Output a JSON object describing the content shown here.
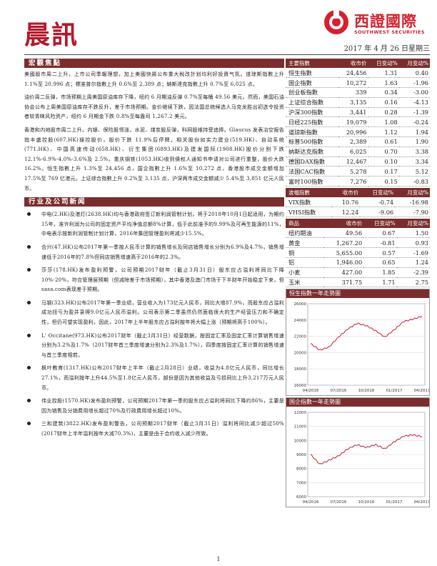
{
  "header": {
    "title": "晨訊",
    "logo_cn": "西證國際",
    "logo_en": "SOUTHWEST SECURITIES",
    "date": "2017 年 4 月 26 日星期三"
  },
  "macro": {
    "heading": "宏觀焦點",
    "paragraphs": [
      "美國股市周二上升，上市公司季報理想，加上美國快將公布重大稅改計划均利好投資气氛。道琼斯指數上升 1.1%至 20,996 点；標准普尔指數上升 0.6%至 2,389 点；納斯達克指數上升 0.7%至 6,025 点。",
      "油价周二反弹，市场预期上周美国原油库存下降，纽约 6 月期油反弹 0.7%至每桶 49.56 美元。然而，美国石油协会公布上周美国原油库存不跌反升，差于市场预期。金价继续下跌，因法国总统候选人马克龙胜出初选令投资者较青睐风险资产，纽约 6 月期金下跌 0.8%至每盎司 1,267.2 美元。",
      "香港和内地股市周二上升。内银、保险股领涨，水泥、煤炭股反弹，科网股维持受追捧。Glaucus 发表冶空报告指丰盛控股(607.HK)操控股价，股价下跌 11.9%后停牌，相关股份如实力建业(519.HK)、自动系统(771.HK)、中国高速传动(658.HK)、衍生集团(6893.HK)及建发国际(1908.HK)股价分别下跌 12.1%-6.9%-4.0%-3.6%及 2.5%。重庆钢铁(1053.HK)收到債权人通知书申请对公司进行重整，股价大跌 16.2%。恒生指數上升 1.3%至 24,456 点，国企指數上升 1.6%至 10,272 点，香港股市成交金額增加 17.5%至 769 亿港元。上证综合指數上升 0.2%至 3,135 点，沪深两市成交金額减少 5.4%至 3,851 亿元人民币。"
    ]
  },
  "news": {
    "heading": "行业及公司新闻",
    "items": [
      "中电(2.HK)及港灯(2638.HK)均与香港政府签订新利润管制计划，将于2018年10月1日起适用，为期约15年，准许利润为公司的固定资产平均净值总额8%计算，低于此前准予的9.99%及可再生能源的11%，中电表示按新利润管制计划计算，2016年集团管理盈利将减少15.5%。",
      "合兴(47.HK)公布2017年第一季按人民币计算的销售增长及同店销售增长分别为6.9%及4.7%，销售增速低于2016年的7.8%但同店销售增速高于2016年的2.3%。",
      "莎莎(178.HK)发布盈利预警，公司预期2017财年（截止3月31日）股东应占溢利将同比下降10%-20%，符合管理层预期（但减除差于市场预期），其中香港及澳门市场于下半财年开始稳定下来，但sasa.com表现差于预期。",
      "马钢(323.HK)公布2017年第一季业绩，营业收入为173亿元人民币，同比大增87.9%，而股东应占溢利成功扭亏为盈并录得9.0亿元人民币溢利。公司表示第二季虽然仍然面临很大的生产经营压力和不确定性，但仍可望实现盈利，因此，2017年上半年股东应占溢利按年将大幅上涨（预期将高于100%）。",
      "L' Occitane(973.HK)公布2017财年（截止3月31日）经营数据，按固定汇率及固定汇率计算销售增速分别为3.2%及1.7%（2017财年首三季度增速分别为2.3%及1.7%），四季度按固定汇率计算的销售增速与首三季度相若。",
      "枫叶教育(1317.HK)公布2017财年上半年（截止2月28日）业绩，收益为4.8亿元人民币，同比增长27.1%，而溢利按年上升44.5%至1.8亿元人民币，部份是因为其他收益及亏损同比上升3,217万元人民币。",
      "伟业控股(1570.HK)发布盈利预警，公司预期2017年第一季的股东应占溢利将同比下降约86%，主要是因为销售及分销费用增长超过70%及行政费用增长超过10%。",
      "三和建筑(3822.HK)发布盈利警告，公司预期2017财年（截止3月31日）溢利将同比减少超过50%(2017财年上半年溢利按年大减70.3%)，主要是由于合约收入减少所致。"
    ]
  },
  "indices": {
    "headers": [
      "主要指數",
      "收市价",
      "日变动%",
      "月变动%"
    ],
    "rows": [
      [
        "恒生指數",
        "24,456",
        "1.31",
        "0.40"
      ],
      [
        "国企指數",
        "10,272",
        "1.63",
        "-1.96"
      ],
      [
        "创业板指數",
        "339",
        "0.34",
        "-3.00"
      ],
      [
        "上证综合指數",
        "3,135",
        "0.16",
        "-4.13"
      ],
      [
        "沪深300指數",
        "3,441",
        "0.28",
        "-1.39"
      ],
      [
        "日经225指數",
        "19,079",
        "1.08",
        "-0.24"
      ],
      [
        "道琼斯指數",
        "20,996",
        "1.12",
        "1.94"
      ],
      [
        "标普500指數",
        "2,389",
        "0.61",
        "1.90"
      ],
      [
        "纳斯达克指數",
        "6,025",
        "0.70",
        "3.38"
      ],
      [
        "德国DAX指數",
        "12,467",
        "0.10",
        "3.34"
      ],
      [
        "法国CAC指數",
        "5,278",
        "0.17",
        "5.12"
      ],
      [
        "富时100指數",
        "7,276",
        "0.15",
        "-0.83"
      ]
    ]
  },
  "volatility": {
    "headers": [
      "波幅指數",
      "收市价",
      "日变动%",
      "月变动%"
    ],
    "rows": [
      [
        "VIX指數",
        "10.76",
        "-0.74",
        "-16.98"
      ],
      [
        "VHSI指數",
        "12.24",
        "-9.06",
        "-7.90"
      ]
    ]
  },
  "commodities": {
    "headers": [
      "商品",
      "收市价",
      "日变动%",
      "月变动%"
    ],
    "rows": [
      [
        "纽约期油",
        "49.56",
        "0.67",
        "1.50"
      ],
      [
        "黄金",
        "1,267.20",
        "-0.81",
        "0.93"
      ],
      [
        "铜",
        "5,655.00",
        "0.57",
        "-1.69"
      ],
      [
        "铝",
        "1,946.00",
        "0.65",
        "1.24"
      ],
      [
        "小麦",
        "427.00",
        "1.85",
        "-2.39"
      ],
      [
        "玉米",
        "371.75",
        "1.71",
        "2.75"
      ]
    ]
  },
  "chart_data": [
    {
      "type": "line",
      "title": "恒生指數一年走勢圖",
      "xlabel": "",
      "ylabel": "",
      "ylim": [
        16000,
        26000
      ],
      "yticks": [
        16000,
        18000,
        20000,
        22000,
        24000,
        26000
      ],
      "xticks": [
        "04/2016",
        "07/2016",
        "10/2016",
        "01/2017",
        "04/2017"
      ],
      "x": [
        "2016-04",
        "2016-05",
        "2016-06",
        "2016-07",
        "2016-08",
        "2016-09",
        "2016-10",
        "2016-11",
        "2016-12",
        "2017-01",
        "2017-02",
        "2017-03",
        "2017-04"
      ],
      "series": [
        {
          "values": [
            21100,
            20300,
            20700,
            21900,
            22900,
            23600,
            23300,
            22700,
            21900,
            22800,
            23800,
            24100,
            24456
          ]
        }
      ]
    },
    {
      "type": "line",
      "title": "国企指數一年走勢圖",
      "xlabel": "",
      "ylabel": "",
      "ylim": [
        6000,
        12000
      ],
      "yticks": [
        6000,
        7000,
        8000,
        9000,
        10000,
        11000,
        12000
      ],
      "xticks": [
        "04/2016",
        "07/2016",
        "10/2016",
        "01/2017",
        "04/2017"
      ],
      "x": [
        "2016-04",
        "2016-05",
        "2016-06",
        "2016-07",
        "2016-08",
        "2016-09",
        "2016-10",
        "2016-11",
        "2016-12",
        "2017-01",
        "2017-02",
        "2017-03",
        "2017-04"
      ],
      "series": [
        {
          "values": [
            9000,
            8300,
            8600,
            8900,
            9400,
            9700,
            9500,
            9700,
            9400,
            9900,
            10300,
            10400,
            10272
          ]
        }
      ]
    }
  ],
  "footer": {
    "page": "1"
  },
  "colors": {
    "header_band": "#7b2d2d",
    "title_red": "#b4182b",
    "chart_line": "#c81e2c"
  }
}
